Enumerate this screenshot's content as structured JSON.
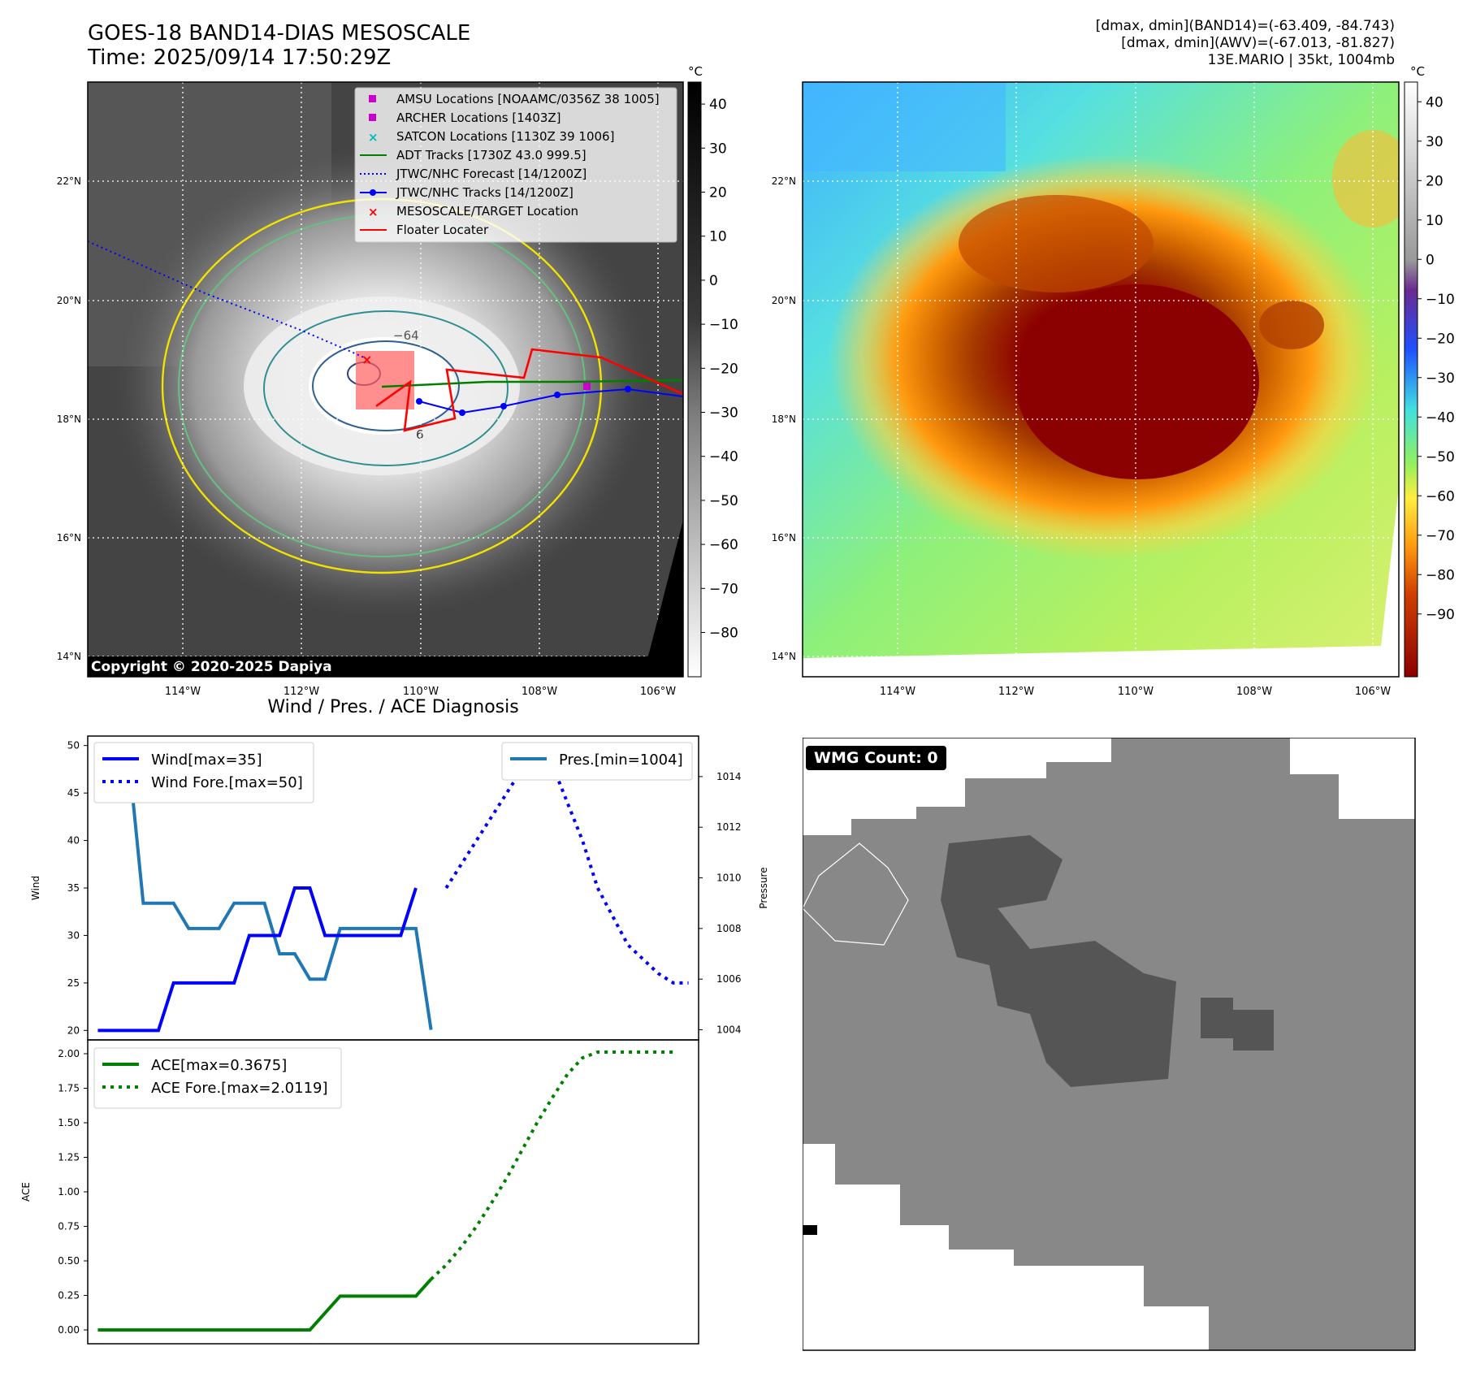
{
  "header": {
    "title_line1": "GOES-18 BAND14-DIAS MESOSCALE",
    "title_line2": "Time: 2025/09/14 17:50:29Z",
    "info_line1": "[dmax, dmin](BAND14)=(-63.409, -84.743)",
    "info_line2": "[dmax, dmin](AWV)=(-67.013, -81.827)",
    "info_line3": "13E.MARIO | 35kt, 1004mb"
  },
  "maps": {
    "lat_labels": [
      "22°N",
      "20°N",
      "18°N",
      "16°N",
      "14°N"
    ],
    "lon_labels": [
      "114°W",
      "112°W",
      "110°W",
      "108°W",
      "106°W"
    ],
    "copyright": "Copyright © 2020-2025 Dapiya",
    "contour_label": "−64",
    "contour_label2": "6",
    "colorbar1_unit": "°C",
    "colorbar1_ticks": [
      "40",
      "30",
      "20",
      "10",
      "0",
      "−10",
      "−20",
      "−30",
      "−40",
      "−50",
      "−60",
      "−70",
      "−80"
    ],
    "colorbar2_unit": "°C",
    "colorbar2_ticks": [
      "40",
      "30",
      "20",
      "10",
      "0",
      "−10",
      "−20",
      "−30",
      "−40",
      "−50",
      "−60",
      "−70",
      "−80",
      "−90"
    ],
    "legend": [
      {
        "label": "AMSU Locations [NOAAMC/0356Z 38 1005]",
        "color": "#cc00cc",
        "marker": "square"
      },
      {
        "label": "ARCHER Locations [1403Z]",
        "color": "#cc00cc",
        "marker": "square"
      },
      {
        "label": "SATCON Locations [1130Z 39 1006]",
        "color": "#00bbbb",
        "marker": "x"
      },
      {
        "label": "ADT Tracks [1730Z 43.0 999.5]",
        "color": "#008000",
        "marker": "line"
      },
      {
        "label": "JTWC/NHC Forecast [14/1200Z]",
        "color": "#0000ff",
        "marker": "dotted"
      },
      {
        "label": "JTWC/NHC Tracks [14/1200Z]",
        "color": "#0000ff",
        "marker": "line-dot"
      },
      {
        "label": "MESOSCALE/TARGET Location",
        "color": "#ff0000",
        "marker": "x"
      },
      {
        "label": "Floater Locater",
        "color": "#ff0000",
        "marker": "line"
      }
    ]
  },
  "diagnosis": {
    "title": "Wind / Pres. / ACE Diagnosis",
    "wind_ylabel": "Wind",
    "pres_ylabel": "Pressure",
    "ace_ylabel": "ACE",
    "wind_legend": "Wind[max=35]",
    "wind_fore_legend": "Wind Fore.[max=50]",
    "pres_legend": "Pres.[min=1004]",
    "ace_legend": "ACE[max=0.3675]",
    "ace_fore_legend": "ACE Fore.[max=2.0119]"
  },
  "wmg": {
    "label": "WMG Count: 0"
  },
  "chart_data": [
    {
      "type": "line",
      "title": "Wind / Pres. / ACE Diagnosis",
      "ylabel": "Wind",
      "ylim": [
        19,
        51
      ],
      "yticks": [
        20,
        25,
        30,
        35,
        40,
        45,
        50
      ],
      "series": [
        {
          "name": "Wind[max=35]",
          "x": [
            0,
            6,
            12,
            18,
            24,
            30,
            36,
            42,
            48,
            54,
            60,
            66,
            72,
            78,
            84,
            90,
            96,
            102,
            108,
            114,
            120,
            126,
            132,
            138
          ],
          "values": [
            20,
            20,
            20,
            20,
            20,
            25,
            25,
            25,
            25,
            25,
            30,
            30,
            30,
            35,
            35,
            30,
            30,
            30,
            30,
            30,
            30,
            35,
            null,
            null
          ]
        },
        {
          "name": "Wind Fore.[max=50]",
          "x": [
            138,
            144,
            150,
            156,
            162,
            168,
            174,
            180,
            186,
            192,
            198,
            204,
            210,
            216,
            222,
            228,
            234
          ],
          "values": [
            35,
            37.5,
            40,
            42.5,
            45,
            47.5,
            50,
            48,
            44,
            40,
            35,
            32,
            29,
            27.5,
            26,
            25,
            25
          ]
        }
      ]
    },
    {
      "type": "line",
      "ylabel": "Pressure",
      "ylim": [
        1003.6,
        1015.6
      ],
      "yticks": [
        1004,
        1006,
        1008,
        1010,
        1012,
        1014
      ],
      "series": [
        {
          "name": "Pres.[min=1004]",
          "x": [
            0,
            6,
            12,
            18,
            24,
            30,
            36,
            42,
            48,
            54,
            60,
            66,
            72,
            78,
            84,
            90,
            96,
            102,
            108,
            114,
            120,
            126,
            132
          ],
          "values": [
            1015,
            1015,
            1015,
            1009,
            1009,
            1009,
            1008,
            1008,
            1008,
            1009,
            1009,
            1009,
            1007,
            1007,
            1006,
            1006,
            1008,
            1008,
            1008,
            1008,
            1008,
            1008,
            1004
          ]
        }
      ]
    },
    {
      "type": "line",
      "ylabel": "ACE",
      "ylim": [
        -0.1,
        2.1
      ],
      "yticks": [
        0.0,
        0.25,
        0.5,
        0.75,
        1.0,
        1.25,
        1.5,
        1.75,
        2.0
      ],
      "series": [
        {
          "name": "ACE[max=0.3675]",
          "x": [
            0,
            12,
            24,
            36,
            48,
            60,
            72,
            84,
            96,
            102,
            108,
            114,
            120,
            126,
            132
          ],
          "values": [
            0,
            0,
            0,
            0,
            0,
            0,
            0,
            0,
            0.245,
            0.245,
            0.245,
            0.245,
            0.245,
            0.245,
            0.3675
          ]
        },
        {
          "name": "ACE Fore.[max=2.0119]",
          "x": [
            132,
            138,
            144,
            150,
            156,
            162,
            168,
            174,
            180,
            186,
            192,
            198,
            204,
            210,
            216,
            222,
            228
          ],
          "values": [
            0.3675,
            0.47,
            0.6,
            0.75,
            0.92,
            1.1,
            1.3,
            1.5,
            1.68,
            1.85,
            1.97,
            2.0119,
            2.0119,
            2.0119,
            2.0119,
            2.0119,
            2.0119
          ]
        }
      ]
    }
  ]
}
